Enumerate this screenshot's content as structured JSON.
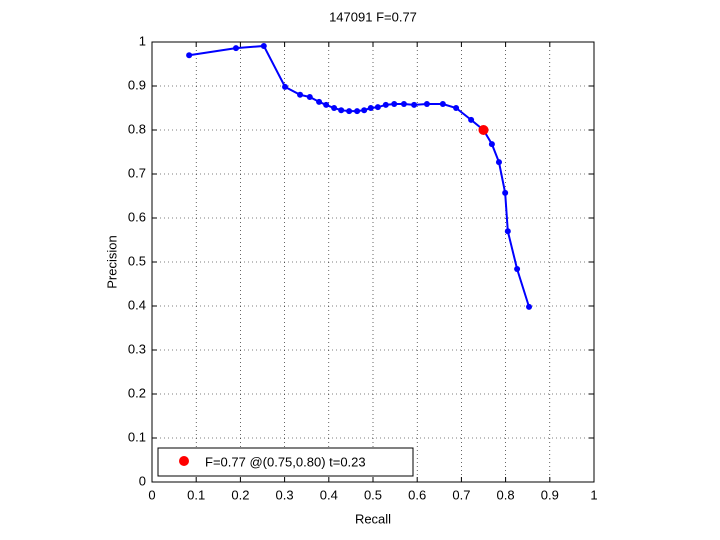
{
  "chart_data": {
    "type": "line",
    "title": "147091 F=0.77",
    "x_label": "Recall",
    "y_label": "Precision",
    "x": [
      0.084,
      0.19,
      0.253,
      0.301,
      0.335,
      0.357,
      0.378,
      0.394,
      0.412,
      0.428,
      0.446,
      0.464,
      0.48,
      0.495,
      0.511,
      0.529,
      0.548,
      0.57,
      0.593,
      0.622,
      0.658,
      0.688,
      0.722,
      0.75,
      0.769,
      0.785,
      0.799,
      0.805,
      0.826,
      0.853
    ],
    "series": [
      {
        "color": "#0000ff",
        "values": [
          0.97,
          0.986,
          0.991,
          0.898,
          0.88,
          0.875,
          0.864,
          0.857,
          0.85,
          0.845,
          0.843,
          0.843,
          0.845,
          0.85,
          0.852,
          0.857,
          0.859,
          0.859,
          0.857,
          0.859,
          0.859,
          0.85,
          0.823,
          0.8,
          0.768,
          0.727,
          0.657,
          0.57,
          0.484,
          0.398
        ]
      }
    ],
    "highlight": {
      "name": "F=0.77 @(0.75,0.80) t=0.23",
      "x": 0.75,
      "y": 0.8,
      "color": "#ff0000"
    },
    "xlim": [
      0,
      1
    ],
    "ylim": [
      0,
      1
    ],
    "xticks": [
      0,
      0.1,
      0.2,
      0.3,
      0.4,
      0.5,
      0.6,
      0.7,
      0.8,
      0.9,
      1
    ],
    "yticks": [
      0,
      0.1,
      0.2,
      0.3,
      0.4,
      0.5,
      0.6,
      0.7,
      0.8,
      0.9,
      1
    ],
    "grid": true
  }
}
